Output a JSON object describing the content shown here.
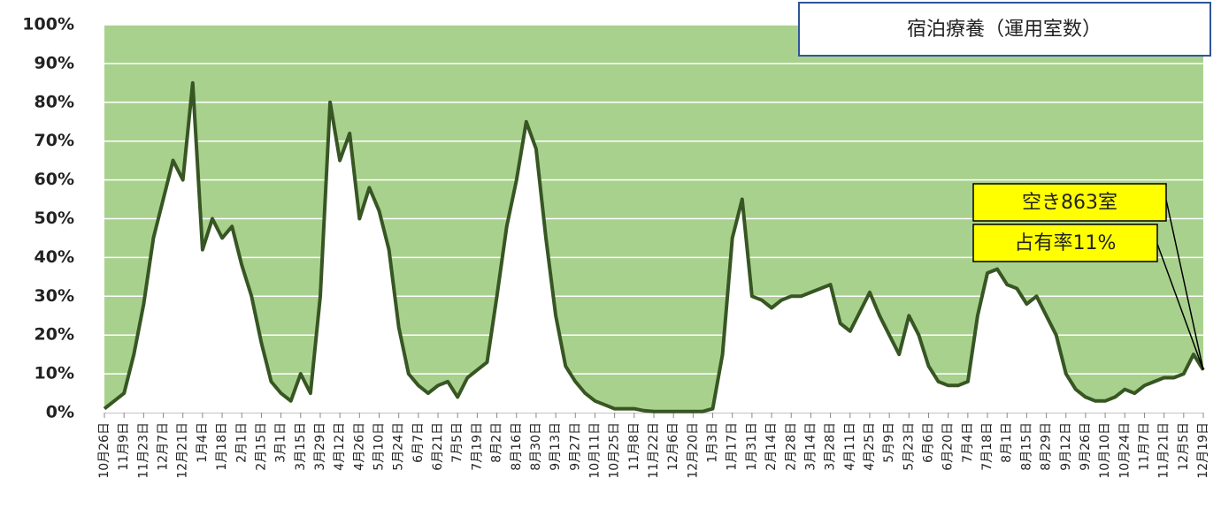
{
  "chart_data": {
    "type": "line",
    "title": "宿泊療養（運用室数）",
    "annotations": [
      "空き863室",
      "占有率11%"
    ],
    "categories": [
      "10月26日",
      null,
      "11月9日",
      null,
      "11月23日",
      null,
      "12月7日",
      null,
      "12月21日",
      null,
      "1月4日",
      null,
      "1月18日",
      null,
      "2月1日",
      null,
      "2月15日",
      null,
      "3月1日",
      null,
      "3月15日",
      null,
      "3月29日",
      null,
      "4月12日",
      null,
      "4月26日",
      null,
      "5月10日",
      null,
      "5月24日",
      null,
      "6月7日",
      null,
      "6月21日",
      null,
      "7月5日",
      null,
      "7月19日",
      null,
      "8月2日",
      null,
      "8月16日",
      null,
      "8月30日",
      null,
      "9月13日",
      null,
      "9月27日",
      null,
      "10月11日",
      null,
      "10月25日",
      null,
      "11月8日",
      null,
      "11月22日",
      null,
      "12月6日",
      null,
      "12月20日",
      null,
      "1月3日",
      null,
      "1月17日",
      null,
      "1月31日",
      null,
      "2月14日",
      null,
      "2月28日",
      null,
      "3月14日",
      null,
      "3月28日",
      null,
      "4月11日",
      null,
      "4月25日",
      null,
      "5月9日",
      null,
      "5月23日",
      null,
      "6月6日",
      null,
      "6月20日",
      null,
      "7月4日",
      null,
      "7月18日",
      null,
      "8月1日",
      null,
      "8月15日",
      null,
      "8月29日",
      null,
      "9月12日",
      null,
      "9月26日",
      null,
      "10月10日",
      null,
      "10月24日",
      null,
      "11月7日",
      null,
      "11月21日",
      null,
      "12月5日",
      null,
      "12月19日"
    ],
    "series": [
      {
        "color": "#375623",
        "values": [
          1,
          3,
          5,
          15,
          28,
          45,
          55,
          65,
          60,
          85,
          42,
          50,
          45,
          48,
          38,
          30,
          18,
          8,
          5,
          3,
          10,
          5,
          30,
          80,
          65,
          72,
          50,
          58,
          52,
          42,
          22,
          10,
          7,
          5,
          7,
          8,
          4,
          9,
          11,
          13,
          30,
          48,
          60,
          75,
          68,
          45,
          25,
          12,
          8,
          5,
          3,
          2,
          1,
          1,
          1,
          0.5,
          0.3,
          0.3,
          0.3,
          0.3,
          0.3,
          0.3,
          1,
          15,
          45,
          55,
          30,
          29,
          27,
          29,
          30,
          30,
          31,
          32,
          33,
          23,
          21,
          26,
          31,
          25,
          20,
          15,
          25,
          20,
          12,
          8,
          7,
          7,
          8,
          25,
          36,
          37,
          33,
          32,
          28,
          30,
          25,
          20,
          10,
          6,
          4,
          3,
          3,
          4,
          6,
          5,
          7,
          8,
          9,
          9,
          10,
          15,
          11
        ]
      }
    ],
    "fill_below": "#ffffff",
    "plot_background": "#a9d18e",
    "ylim": [
      0,
      100
    ],
    "yticks": [
      {
        "value": 0,
        "label": "0%"
      },
      {
        "value": 10,
        "label": "10%"
      },
      {
        "value": 20,
        "label": "20%"
      },
      {
        "value": 30,
        "label": "30%"
      },
      {
        "value": 40,
        "label": "40%"
      },
      {
        "value": 50,
        "label": "50%"
      },
      {
        "value": 60,
        "label": "60%"
      },
      {
        "value": 70,
        "label": "70%"
      },
      {
        "value": 80,
        "label": "80%"
      },
      {
        "value": 90,
        "label": "90%"
      },
      {
        "value": 100,
        "label": "100%"
      }
    ],
    "grid": true
  }
}
